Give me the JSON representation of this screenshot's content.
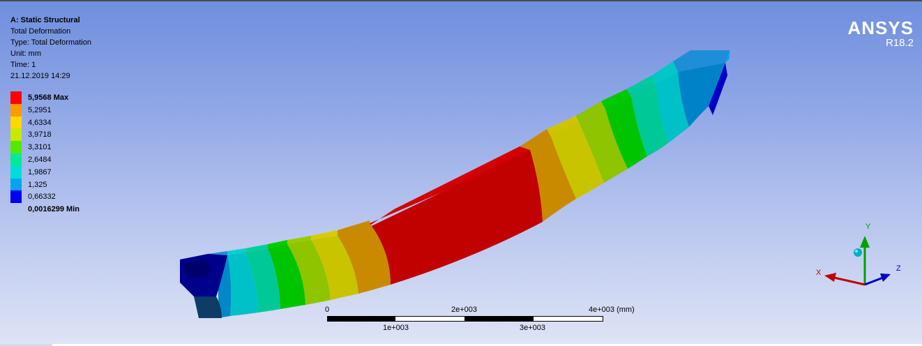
{
  "info": {
    "analysis": "A: Static Structural",
    "result": "Total Deformation",
    "type": "Type: Total Deformation",
    "unit": "Unit: mm",
    "time": "Time: 1",
    "datetime": "21.12.2019 14:29"
  },
  "legend": {
    "entries": [
      {
        "label": "5,9568 Max",
        "color": "#ff0000"
      },
      {
        "label": "5,2951",
        "color": "#ff9b00"
      },
      {
        "label": "4,6334",
        "color": "#ffd800"
      },
      {
        "label": "3,9718",
        "color": "#c7ea00"
      },
      {
        "label": "3,3101",
        "color": "#54ea00"
      },
      {
        "label": "2,6484",
        "color": "#00eb96"
      },
      {
        "label": "1,9867",
        "color": "#00dbdb"
      },
      {
        "label": "1,325",
        "color": "#00a5f0"
      },
      {
        "label": "0,66332",
        "color": "#0000f8"
      },
      {
        "label": "0,0016299 Min",
        "color": ""
      }
    ]
  },
  "brand": {
    "name": "ANSYS",
    "version": "R18.2"
  },
  "scale_bar": {
    "top_labels": [
      "0",
      "2e+003",
      "4e+003 (mm)"
    ],
    "bottom_labels": [
      "1e+003",
      "3e+003"
    ]
  },
  "triad": {
    "x": "X",
    "y": "Y",
    "z": "Z"
  },
  "colors": {
    "red": "#c10000",
    "orange": "#c98a00",
    "yellow": "#cfc400",
    "yellowgreen": "#8ec400",
    "green": "#00c400",
    "teal": "#00c896",
    "cyan": "#00c8c8",
    "lightblue": "#0090d0",
    "blue": "#0000d0"
  }
}
